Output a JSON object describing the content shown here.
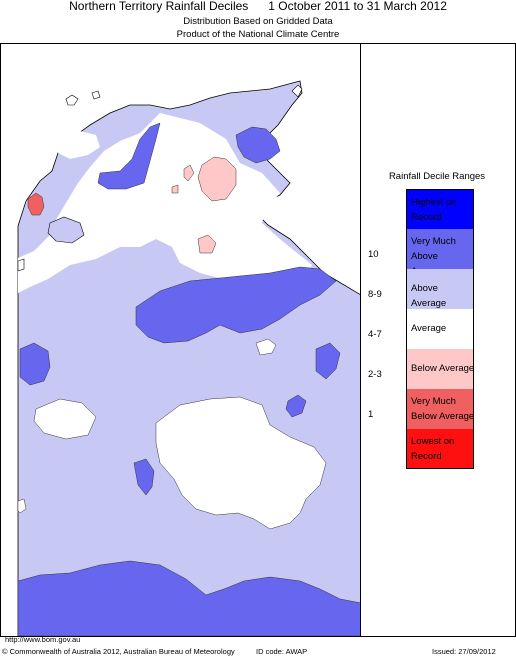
{
  "title": {
    "main": "Northern Territory Rainfall Deciles      1 October 2011 to 31 March 2012",
    "line1": "Distribution Based on Gridded Data",
    "line2": "Product of the National Climate Centre"
  },
  "legend": {
    "title": "Rainfall Decile Ranges",
    "items": [
      {
        "range": "",
        "label": "Highest on Record",
        "color": "#0000ff"
      },
      {
        "range": "10",
        "label": "Very Much Above Average",
        "color": "#6666ee"
      },
      {
        "range": "8-9",
        "label": "Above Average",
        "color": "#c8c8f4"
      },
      {
        "range": "4-7",
        "label": "Average",
        "color": "#ffffff"
      },
      {
        "range": "2-3",
        "label": "Below Average",
        "color": "#ffc8c8"
      },
      {
        "range": "1",
        "label": "Very Much Below Average",
        "color": "#f06060"
      },
      {
        "range": "",
        "label": "Lowest on Record",
        "color": "#ff1010"
      }
    ]
  },
  "map_colors": {
    "above_average": "#c8c8f4",
    "very_much_above": "#6666ee",
    "average": "#ffffff",
    "below_average": "#ffc8c8",
    "very_much_below": "#f06060"
  },
  "footer": {
    "url": "http://www.bom.gov.au",
    "copyright": "© Commonwealth of Australia 2012, Australian Bureau of Meteorology",
    "id_code": "ID code: AWAP",
    "issued": "Issued: 27/09/2012"
  }
}
